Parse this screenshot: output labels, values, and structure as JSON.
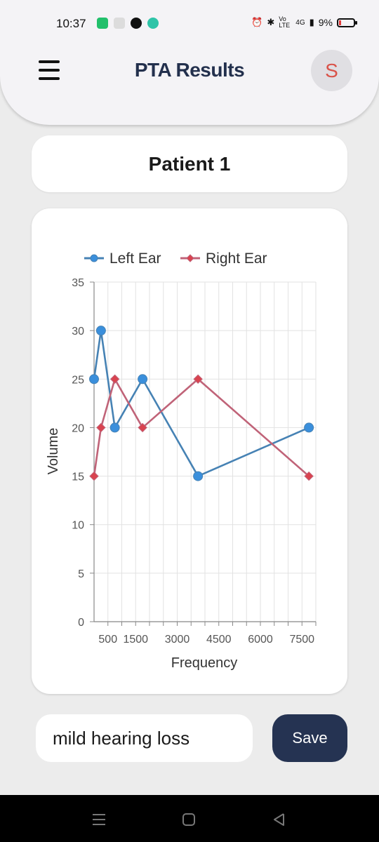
{
  "status_bar": {
    "time": "10:37",
    "network": "4G",
    "volte": "Vo LTE",
    "battery": "9%"
  },
  "header": {
    "title": "PTA Results",
    "avatar_letter": "S"
  },
  "patient": {
    "name": "Patient 1"
  },
  "chart_data": {
    "type": "line",
    "xlabel": "Frequency",
    "ylabel": "Volume",
    "xlim": [
      0,
      8000
    ],
    "ylim": [
      0,
      35
    ],
    "x_tick_labels": [
      "500",
      "1500",
      "3000",
      "4500",
      "6000",
      "7500"
    ],
    "x_tick_values": [
      500,
      1500,
      3000,
      4500,
      6000,
      7500
    ],
    "y_ticks": [
      0,
      5,
      10,
      15,
      20,
      25,
      30,
      35
    ],
    "legend_position": "top",
    "grid": true,
    "series": [
      {
        "name": "Left Ear",
        "color": "#4682b4",
        "marker_color": "#3a8fdc",
        "marker": "circle",
        "points": [
          [
            0,
            25
          ],
          [
            250,
            30
          ],
          [
            750,
            20
          ],
          [
            1750,
            25
          ],
          [
            3750,
            15
          ],
          [
            7750,
            20
          ]
        ]
      },
      {
        "name": "Right Ear",
        "color": "#c06378",
        "marker_color": "#d9434f",
        "marker": "diamond",
        "points": [
          [
            0,
            15
          ],
          [
            250,
            20
          ],
          [
            750,
            25
          ],
          [
            1750,
            20
          ],
          [
            3750,
            25
          ],
          [
            7750,
            15
          ]
        ]
      }
    ]
  },
  "notes": {
    "value": "mild hearing loss"
  },
  "actions": {
    "save_label": "Save"
  }
}
